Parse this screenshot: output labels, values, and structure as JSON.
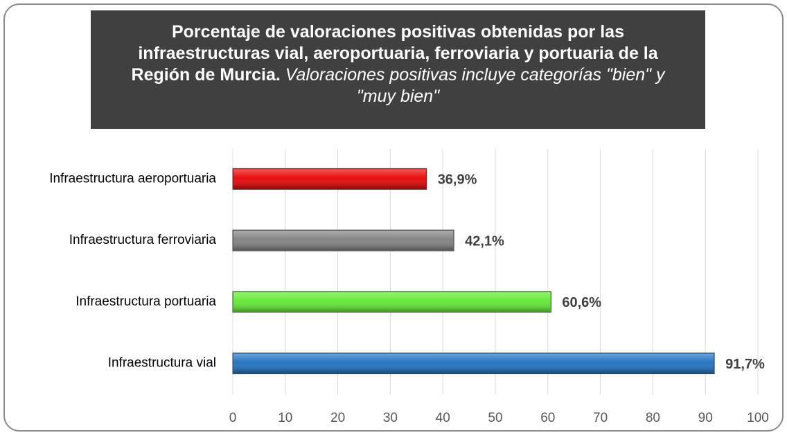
{
  "chart_data": {
    "type": "barh",
    "title": "Porcentaje de valoraciones positivas obtenidas por las infraestructuras vial, aeroportuaria, ferroviaria y portuaria de la Región de Murcia.",
    "subtitle": "Valoraciones positivas incluye categorías \"bien\" y \"muy bien\"",
    "categories": [
      "Infraestructura aeroportuaria",
      "Infraestructura ferroviaria",
      "Infraestructura portuaria",
      "Infraestructura vial"
    ],
    "values": [
      36.9,
      42.1,
      60.6,
      91.7
    ],
    "value_labels": [
      "36,9%",
      "42,1%",
      "60,6%",
      "91,7%"
    ],
    "colors": [
      "#e80000",
      "#7f7f7f",
      "#5ee830",
      "#1c6fc0"
    ],
    "xlim": [
      0,
      100
    ],
    "xticks": [
      0,
      10,
      20,
      30,
      40,
      50,
      60,
      70,
      80,
      90,
      100
    ],
    "grid": true
  }
}
